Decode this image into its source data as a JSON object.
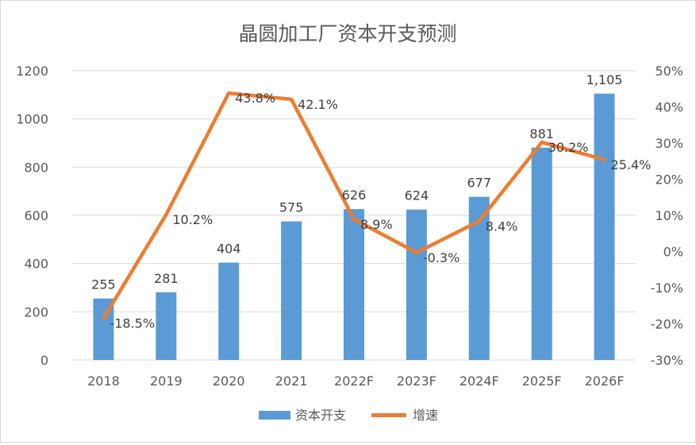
{
  "chart_data": {
    "type": "bar",
    "title": "晶圆加工厂资本开支预测",
    "categories": [
      "2018",
      "2019",
      "2020",
      "2021",
      "2022F",
      "2023F",
      "2024F",
      "2025F",
      "2026F"
    ],
    "series": [
      {
        "name": "资本开支",
        "type": "bar",
        "axis": "left",
        "color": "#5b9bd5",
        "values": [
          255,
          281,
          404,
          575,
          626,
          624,
          677,
          881,
          1105
        ],
        "labels": [
          "255",
          "281",
          "404",
          "575",
          "626",
          "624",
          "677",
          "881",
          "1,105"
        ]
      },
      {
        "name": "增速",
        "type": "line",
        "axis": "right",
        "color": "#ed7d31",
        "values": [
          -18.5,
          10.2,
          43.8,
          42.1,
          8.9,
          -0.3,
          8.4,
          30.2,
          25.4
        ],
        "labels": [
          "-18.5%",
          "10.2%",
          "43.8%",
          "42.1%",
          "8.9%",
          "-0.3%",
          "8.4%",
          "30.2%",
          "25.4%"
        ]
      }
    ],
    "y_left": {
      "min": 0,
      "max": 1200,
      "ticks": [
        "0",
        "200",
        "400",
        "600",
        "800",
        "1000",
        "1200"
      ]
    },
    "y_right": {
      "min": -30,
      "max": 50,
      "ticks": [
        "-30%",
        "-20%",
        "-10%",
        "0%",
        "10%",
        "20%",
        "30%",
        "40%",
        "50%"
      ]
    },
    "grid": true,
    "legend": "bottom",
    "colors": {
      "axis_text": "#595959",
      "gridline": "#d9d9d9",
      "title": "#595959",
      "label": "#404040"
    }
  }
}
